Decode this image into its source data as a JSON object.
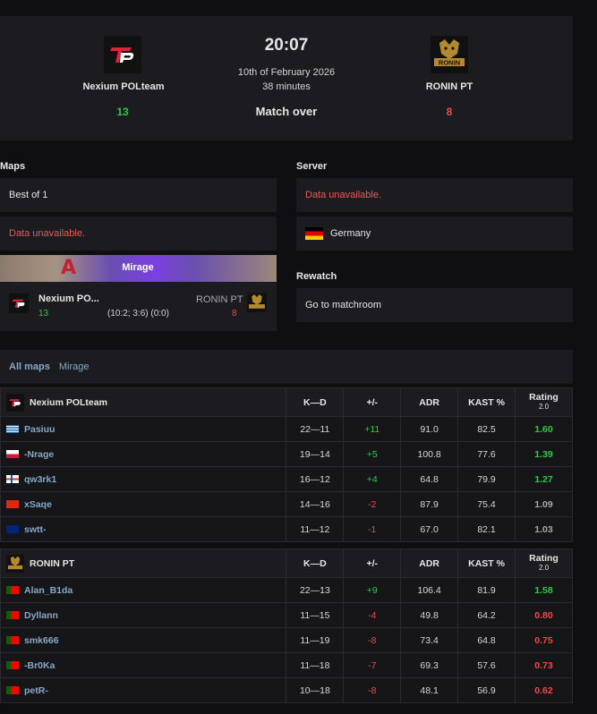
{
  "match": {
    "time": "20:07",
    "date": "10th of February 2026",
    "duration": "38 minutes",
    "status": "Match over",
    "team1": {
      "name": "Nexium POLteam",
      "score": "13"
    },
    "team2": {
      "name": "RONIN PT",
      "score": "8",
      "logo_text": "RONIN"
    }
  },
  "maps": {
    "label": "Maps",
    "best_of": "Best of 1",
    "veto": "Data unavailable.",
    "card": {
      "map": "Mirage",
      "team1": "Nexium PO...",
      "team1_score": "13",
      "team2": "RONIN PT",
      "team2_score": "8",
      "halves": "(10:2; 3:6) (0:0)"
    }
  },
  "server": {
    "label": "Server",
    "info": "Data unavailable.",
    "country": "Germany"
  },
  "rewatch": {
    "label": "Rewatch",
    "link": "Go to matchroom"
  },
  "stats_tabs": {
    "all": "All maps",
    "map": "Mirage"
  },
  "columns": {
    "kd": "K—D",
    "pm": "+/-",
    "adr": "ADR",
    "kast": "KAST %",
    "rating": "Rating",
    "rating_ver": "2.0"
  },
  "team1_stats": {
    "name": "Nexium POLteam",
    "players": [
      {
        "name": "Pasiuu",
        "kd": "22—11",
        "pm": "+11",
        "adr": "91.0",
        "kast": "82.5",
        "rating": "1.60",
        "flag": "greece"
      },
      {
        "name": "-Nrage",
        "kd": "19—14",
        "pm": "+5",
        "adr": "100.8",
        "kast": "77.6",
        "rating": "1.39",
        "flag": "poland"
      },
      {
        "name": "qw3rk1",
        "kd": "16—12",
        "pm": "+4",
        "adr": "64.8",
        "kast": "79.9",
        "rating": "1.27",
        "flag": "faroe"
      },
      {
        "name": "xSaqe",
        "kd": "14—16",
        "pm": "-2",
        "adr": "87.9",
        "kast": "75.4",
        "rating": "1.09",
        "flag": "china"
      },
      {
        "name": "swtt-",
        "kd": "11—12",
        "pm": "-1",
        "adr": "67.0",
        "kast": "82.1",
        "rating": "1.03",
        "flag": "australia"
      }
    ]
  },
  "team2_stats": {
    "name": "RONIN PT",
    "players": [
      {
        "name": "Alan_B1da",
        "kd": "22—13",
        "pm": "+9",
        "adr": "106.4",
        "kast": "81.9",
        "rating": "1.58",
        "flag": "portugal"
      },
      {
        "name": "Dyllann",
        "kd": "11—15",
        "pm": "-4",
        "adr": "49.8",
        "kast": "64.2",
        "rating": "0.80",
        "flag": "portugal"
      },
      {
        "name": "smk666",
        "kd": "11—19",
        "pm": "-8",
        "adr": "73.4",
        "kast": "64.8",
        "rating": "0.75",
        "flag": "portugal"
      },
      {
        "name": "-Br0Ka",
        "kd": "11—18",
        "pm": "-7",
        "adr": "69.3",
        "kast": "57.6",
        "rating": "0.73",
        "flag": "portugal"
      },
      {
        "name": "petR-",
        "kd": "10—18",
        "pm": "-8",
        "adr": "48.1",
        "kast": "56.9",
        "rating": "0.62",
        "flag": "portugal"
      }
    ]
  },
  "colors": {
    "positive": "#30c64a",
    "negative": "#f04848",
    "neutral": "#a8a8ab",
    "accent": "#7b3fe0",
    "brand_red": "#d8253b"
  }
}
